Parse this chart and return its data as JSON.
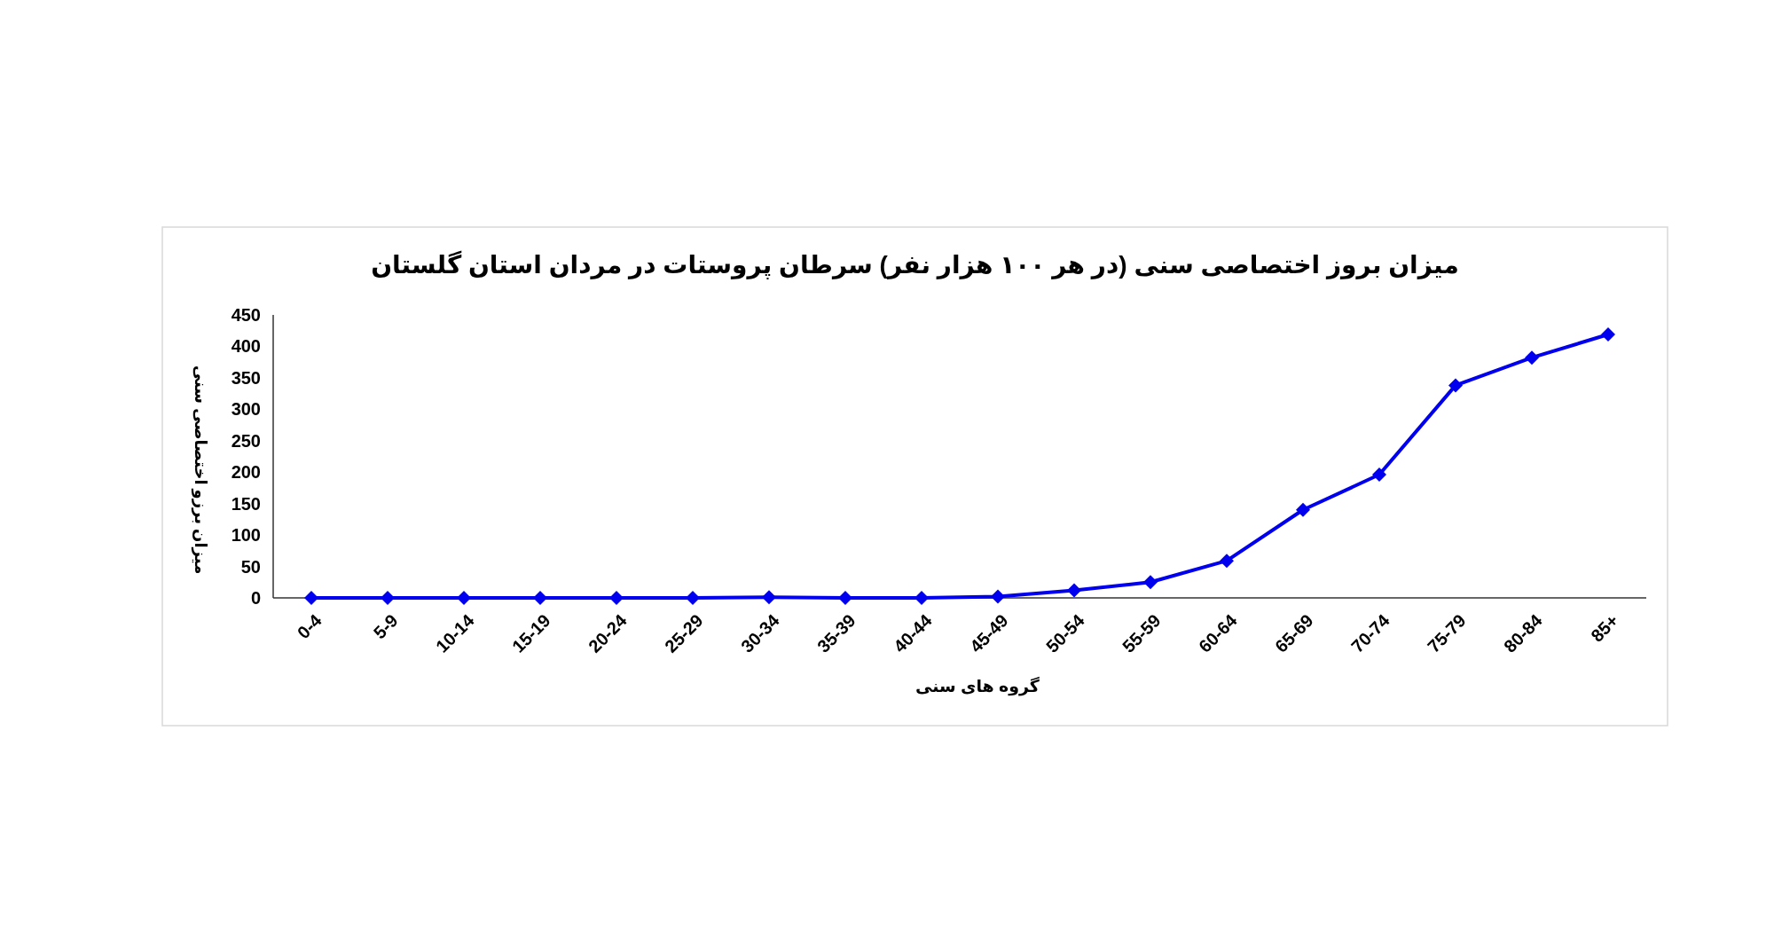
{
  "chart_data": {
    "type": "line",
    "title": "میزان بروز اختصاصی سنی (در هر ۱۰۰ هزار نفر) سرطان پروستات در مردان استان گلستان",
    "xlabel": "گروه های سنی",
    "ylabel": "میزان برزو اختصاصی سنی",
    "categories": [
      "0-4",
      "5-9",
      "10-14",
      "15-19",
      "20-24",
      "25-29",
      "30-34",
      "35-39",
      "40-44",
      "45-49",
      "50-54",
      "55-59",
      "60-64",
      "65-69",
      "70-74",
      "75-79",
      "80-84",
      "85+"
    ],
    "series": [
      {
        "color": "#0000ee",
        "values": [
          0,
          0,
          0,
          0,
          0,
          0,
          1,
          0,
          0,
          2,
          12,
          25,
          59,
          140,
          196,
          338,
          382,
          419
        ]
      }
    ],
    "ylim": [
      0,
      450
    ],
    "yticks": [
      0,
      50,
      100,
      150,
      200,
      250,
      300,
      350,
      400,
      450
    ],
    "grid": false,
    "marker": "diamond",
    "line_style": "solid"
  }
}
